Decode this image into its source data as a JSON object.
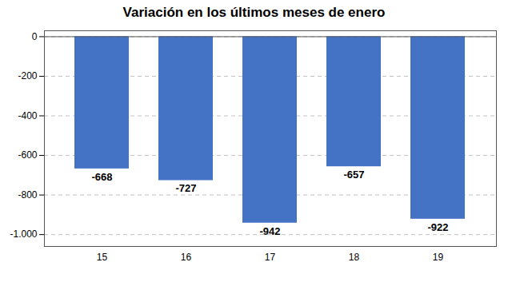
{
  "chart_data": {
    "type": "bar",
    "title": "Variación en los últimos meses de enero",
    "categories": [
      "15",
      "16",
      "17",
      "18",
      "19"
    ],
    "values": [
      -668,
      -727,
      -942,
      -657,
      -922
    ],
    "color": "#4472C4",
    "ylim": [
      -1060,
      30
    ],
    "yticks": [
      0,
      -200,
      -400,
      -600,
      -800,
      {
        "value": -1000,
        "label": "-1.000"
      }
    ],
    "grid": true,
    "data_labels": true
  }
}
